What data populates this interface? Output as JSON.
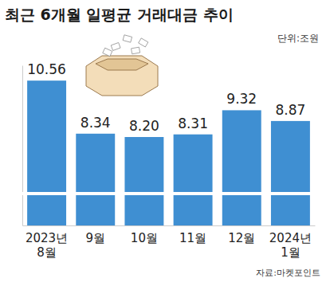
{
  "chart_data": {
    "type": "bar",
    "title": "최근 6개월 일평균 거래대금 추이",
    "subtitle": "단위:조원",
    "source": "자료:마켓포인트",
    "categories": [
      "2023년 8월",
      "9월",
      "10월",
      "11월",
      "12월",
      "2024년 1월"
    ],
    "values": [
      10.56,
      8.34,
      8.2,
      8.31,
      9.32,
      8.87
    ],
    "value_labels": [
      "10.56",
      "8.34",
      "8.20",
      "8.31",
      "9.32",
      "8.87"
    ],
    "color": "#3f8fd2",
    "ylim": [
      4.5,
      11.2
    ],
    "yticks": [],
    "grid": false,
    "data_labels": true,
    "tick_labels": "x"
  }
}
